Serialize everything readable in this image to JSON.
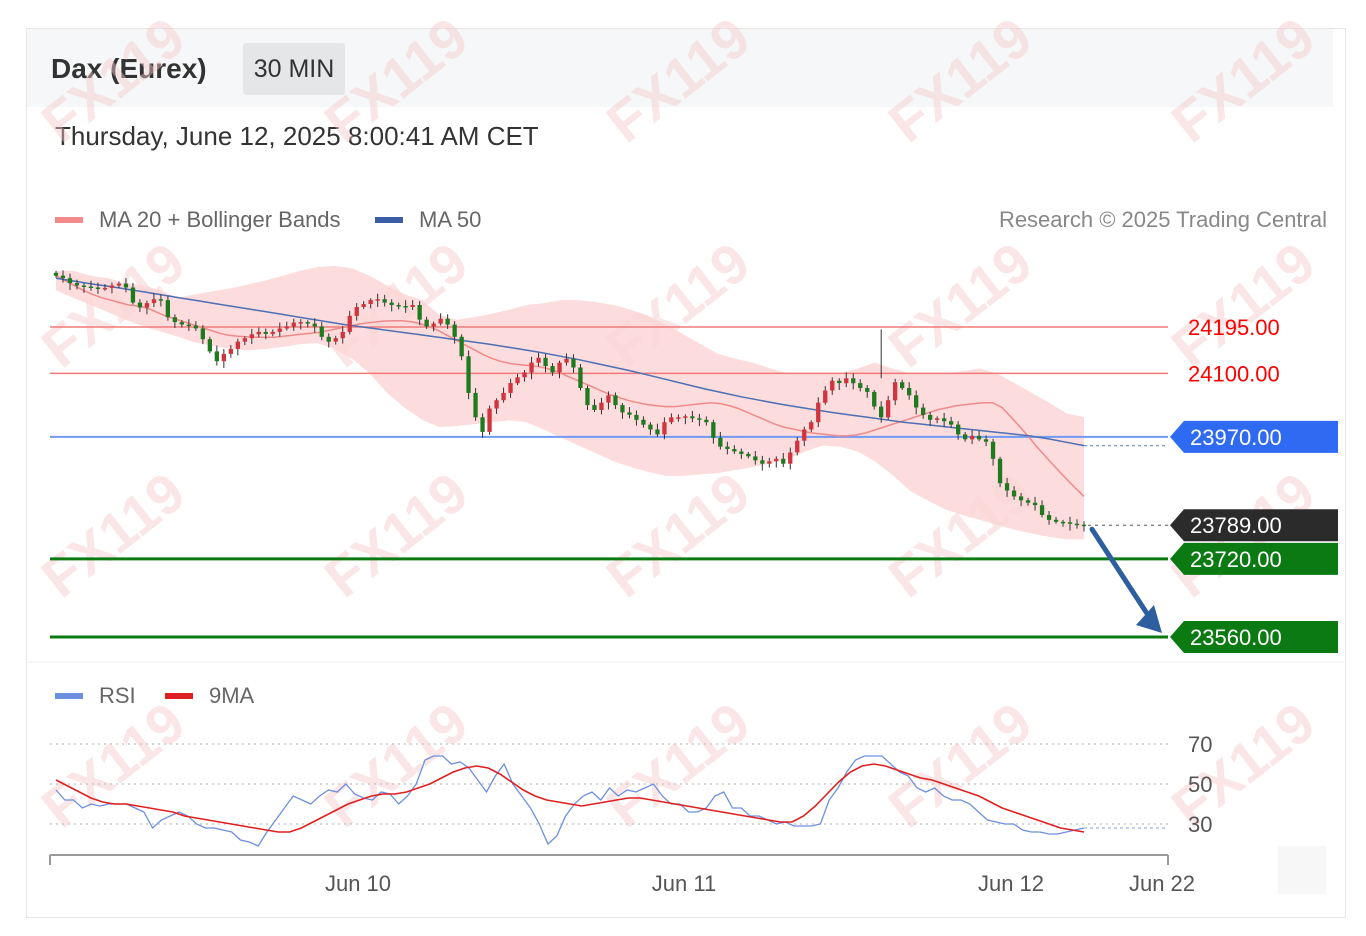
{
  "header": {
    "instrument": "Dax (Eurex)",
    "timeframe": "30 MIN",
    "datetime": "Thursday, June 12, 2025 8:00:41 AM CET",
    "credit": "Research © 2025 Trading Central"
  },
  "legend": {
    "main": [
      {
        "label": "MA 20 + Bollinger Bands",
        "color": "#f58a8a"
      },
      {
        "label": "MA 50",
        "color": "#3b5ea6"
      }
    ],
    "rsi": [
      {
        "label": "RSI",
        "color": "#6d8fe0"
      },
      {
        "label": "9MA",
        "color": "#e02020"
      }
    ]
  },
  "watermark": "FX119",
  "colors": {
    "resistance": "#f07a7a",
    "resistance_text": "#ff0000",
    "pivot": "#2e6bf2",
    "support": "#0c7a12",
    "current": "#2b2b2b",
    "bull_candle": "#d0343f",
    "bear_candle": "#1f7a1f",
    "band_fill": "#fcd6d6",
    "ma20": "#f08a8a",
    "ma50": "#4c6fb5",
    "arrow": "#2d5f9e"
  },
  "chart_data": [
    {
      "type": "candlestick",
      "title": "",
      "x_ticks": [
        "Jun 10",
        "Jun 11",
        "Jun 12",
        "Jun 22"
      ],
      "ylim": [
        23520,
        24320
      ],
      "levels": [
        {
          "value": 24195,
          "label": "24195.00",
          "kind": "resistance"
        },
        {
          "value": 24100,
          "label": "24100.00",
          "kind": "resistance"
        },
        {
          "value": 23970,
          "label": "23970.00",
          "kind": "pivot"
        },
        {
          "value": 23789,
          "label": "23789.00",
          "kind": "current"
        },
        {
          "value": 23720,
          "label": "23720.00",
          "kind": "support"
        },
        {
          "value": 23560,
          "label": "23560.00",
          "kind": "support"
        }
      ],
      "close": [
        24300,
        24295,
        24285,
        24280,
        24278,
        24276,
        24275,
        24275,
        24280,
        24284,
        24276,
        24245,
        24235,
        24244,
        24252,
        24250,
        24215,
        24205,
        24200,
        24198,
        24192,
        24170,
        24145,
        24125,
        24140,
        24150,
        24165,
        24172,
        24180,
        24185,
        24181,
        24185,
        24192,
        24196,
        24204,
        24205,
        24202,
        24196,
        24175,
        24165,
        24172,
        24185,
        24218,
        24236,
        24242,
        24250,
        24252,
        24245,
        24240,
        24238,
        24236,
        24240,
        24210,
        24196,
        24202,
        24212,
        24200,
        24175,
        24135,
        24060,
        24010,
        23980,
        24028,
        24045,
        24060,
        24080,
        24092,
        24102,
        24122,
        24132,
        24115,
        24102,
        24122,
        24130,
        24112,
        24070,
        24035,
        24025,
        24040,
        24055,
        24035,
        24020,
        24015,
        24005,
        23995,
        23985,
        23975,
        24000,
        24010,
        24010,
        24012,
        24008,
        24005,
        24000,
        23968,
        23950,
        23945,
        23940,
        23935,
        23930,
        23922,
        23915,
        23920,
        23925,
        23915,
        23938,
        23962,
        23985,
        24000,
        24040,
        24065,
        24085,
        24080,
        24090,
        24080,
        24070,
        24062,
        24032,
        24010,
        24045,
        24082,
        24070,
        24055,
        24030,
        24015,
        24005,
        24008,
        24002,
        23995,
        23975,
        23965,
        23972,
        23965,
        23960,
        23925,
        23875,
        23860,
        23848,
        23840,
        23835,
        23830,
        23810,
        23800,
        23796,
        23795,
        23792,
        23790,
        23789
      ],
      "ma20": [
        24300,
        24290,
        24280,
        24270,
        24262,
        24255,
        24250,
        24245,
        24240,
        24238,
        24234,
        24226,
        24218,
        24212,
        24206,
        24200,
        24194,
        24188,
        24182,
        24178,
        24176,
        24175,
        24174,
        24174,
        24174,
        24176,
        24178,
        24180,
        24182,
        24184,
        24188,
        24192,
        24196,
        24200,
        24203,
        24205,
        24207,
        24208,
        24208,
        24206,
        24202,
        24196,
        24188,
        24178,
        24168,
        24158,
        24148,
        24138,
        24130,
        24124,
        24120,
        24118,
        24116,
        24114,
        24110,
        24104,
        24096,
        24088,
        24080,
        24072,
        24064,
        24056,
        24050,
        24044,
        24040,
        24036,
        24034,
        24032,
        24032,
        24034,
        24036,
        24038,
        24040,
        24038,
        24034,
        24028,
        24020,
        24012,
        24004,
        23996,
        23990,
        23986,
        23982,
        23978,
        23976,
        23974,
        23972,
        23972,
        23974,
        23978,
        23984,
        23990,
        23996,
        24002,
        24008,
        24014,
        24020,
        24026,
        24030,
        24034,
        24036,
        24038,
        24040,
        24040,
        24030,
        24010,
        23990,
        23968,
        23946,
        23925,
        23905,
        23885,
        23866,
        23848
      ],
      "ma50": [
        24295,
        24289,
        24283,
        24278,
        24272,
        24266,
        24260,
        24254,
        24248,
        24242,
        24236,
        24230,
        24224,
        24218,
        24212,
        24206,
        24200,
        24195,
        24190,
        24185,
        24180,
        24175,
        24170,
        24165,
        24160,
        24154,
        24148,
        24142,
        24135,
        24128,
        24120,
        24112,
        24104,
        24095,
        24086,
        24077,
        24068,
        24060,
        24052,
        24045,
        24038,
        24032,
        24026,
        24020,
        24015,
        24010,
        24005,
        24000,
        23996,
        23992,
        23988,
        23984,
        23980,
        23976,
        23972,
        23966,
        23959,
        23952
      ],
      "bollinger_upper": [
        24310,
        24310,
        24300,
        24295,
        24285,
        24280,
        24270,
        24255,
        24262,
        24268,
        24274,
        24282,
        24290,
        24300,
        24310,
        24318,
        24320,
        24315,
        24300,
        24280,
        24262,
        24250,
        24220,
        24210,
        24215,
        24222,
        24230,
        24240,
        24244,
        24250,
        24250,
        24246,
        24240,
        24230,
        24218,
        24200,
        24180,
        24160,
        24140,
        24130,
        24122,
        24110,
        24100,
        24100,
        24100,
        24100,
        24110,
        24122,
        24110,
        24100,
        24100,
        24100,
        24104,
        24110,
        24100,
        24080,
        24060,
        24040,
        24018,
        24010
      ],
      "bollinger_lower": [
        24270,
        24255,
        24240,
        24225,
        24210,
        24196,
        24186,
        24175,
        24163,
        24156,
        24150,
        24147,
        24150,
        24154,
        24160,
        24162,
        24150,
        24130,
        24100,
        24060,
        24030,
        24005,
        23990,
        23992,
        23996,
        24000,
        24004,
        24000,
        23985,
        23968,
        23952,
        23936,
        23920,
        23908,
        23898,
        23890,
        23890,
        23893,
        23896,
        23902,
        23908,
        23916,
        23924,
        23940,
        23952,
        23950,
        23940,
        23920,
        23892,
        23860,
        23840,
        23822,
        23810,
        23800,
        23790,
        23780,
        23772,
        23765,
        23760,
        23760
      ]
    },
    {
      "type": "line",
      "title": "",
      "yticks": [
        70,
        50,
        30
      ],
      "ylim": [
        15,
        80
      ],
      "series": [
        {
          "name": "RSI",
          "values": [
            47,
            42,
            42,
            38,
            40,
            39,
            40,
            40,
            40,
            38,
            36,
            28,
            32,
            34,
            36,
            34,
            30,
            28,
            28,
            27,
            26,
            22,
            21,
            19,
            26,
            32,
            38,
            44,
            42,
            40,
            44,
            47,
            46,
            50,
            45,
            43,
            42,
            46,
            45,
            40,
            44,
            50,
            62,
            64,
            64,
            60,
            61,
            58,
            52,
            46,
            54,
            60,
            50,
            44,
            38,
            30,
            20,
            24,
            34,
            40,
            44,
            46,
            42,
            48,
            44,
            47,
            46,
            48,
            50,
            44,
            40,
            40,
            36,
            36,
            38,
            44,
            46,
            38,
            38,
            34,
            34,
            32,
            30,
            31,
            29,
            29,
            29,
            30,
            42,
            48,
            56,
            62,
            64,
            64,
            64,
            60,
            56,
            54,
            48,
            46,
            48,
            44,
            42,
            42,
            40,
            36,
            32,
            31,
            30,
            30,
            27,
            26,
            26,
            25,
            25,
            26,
            27,
            28
          ]
        },
        {
          "name": "9MA",
          "values": [
            52,
            49,
            46,
            43,
            41,
            40,
            40,
            39,
            38,
            37,
            36,
            34,
            33,
            32,
            31,
            30,
            29,
            28,
            27,
            26,
            26,
            28,
            31,
            34,
            37,
            40,
            42,
            44,
            45,
            45,
            46,
            48,
            50,
            53,
            56,
            58,
            59,
            58,
            55,
            51,
            47,
            44,
            42,
            41,
            40,
            39,
            40,
            41,
            42,
            43,
            43,
            42,
            41,
            40,
            39,
            38,
            37,
            36,
            35,
            34,
            33,
            32,
            31,
            31,
            34,
            39,
            45,
            51,
            56,
            59,
            60,
            59,
            57,
            55,
            53,
            52,
            50,
            48,
            46,
            44,
            41,
            38,
            36,
            34,
            32,
            30,
            28,
            27,
            26
          ]
        }
      ]
    }
  ]
}
